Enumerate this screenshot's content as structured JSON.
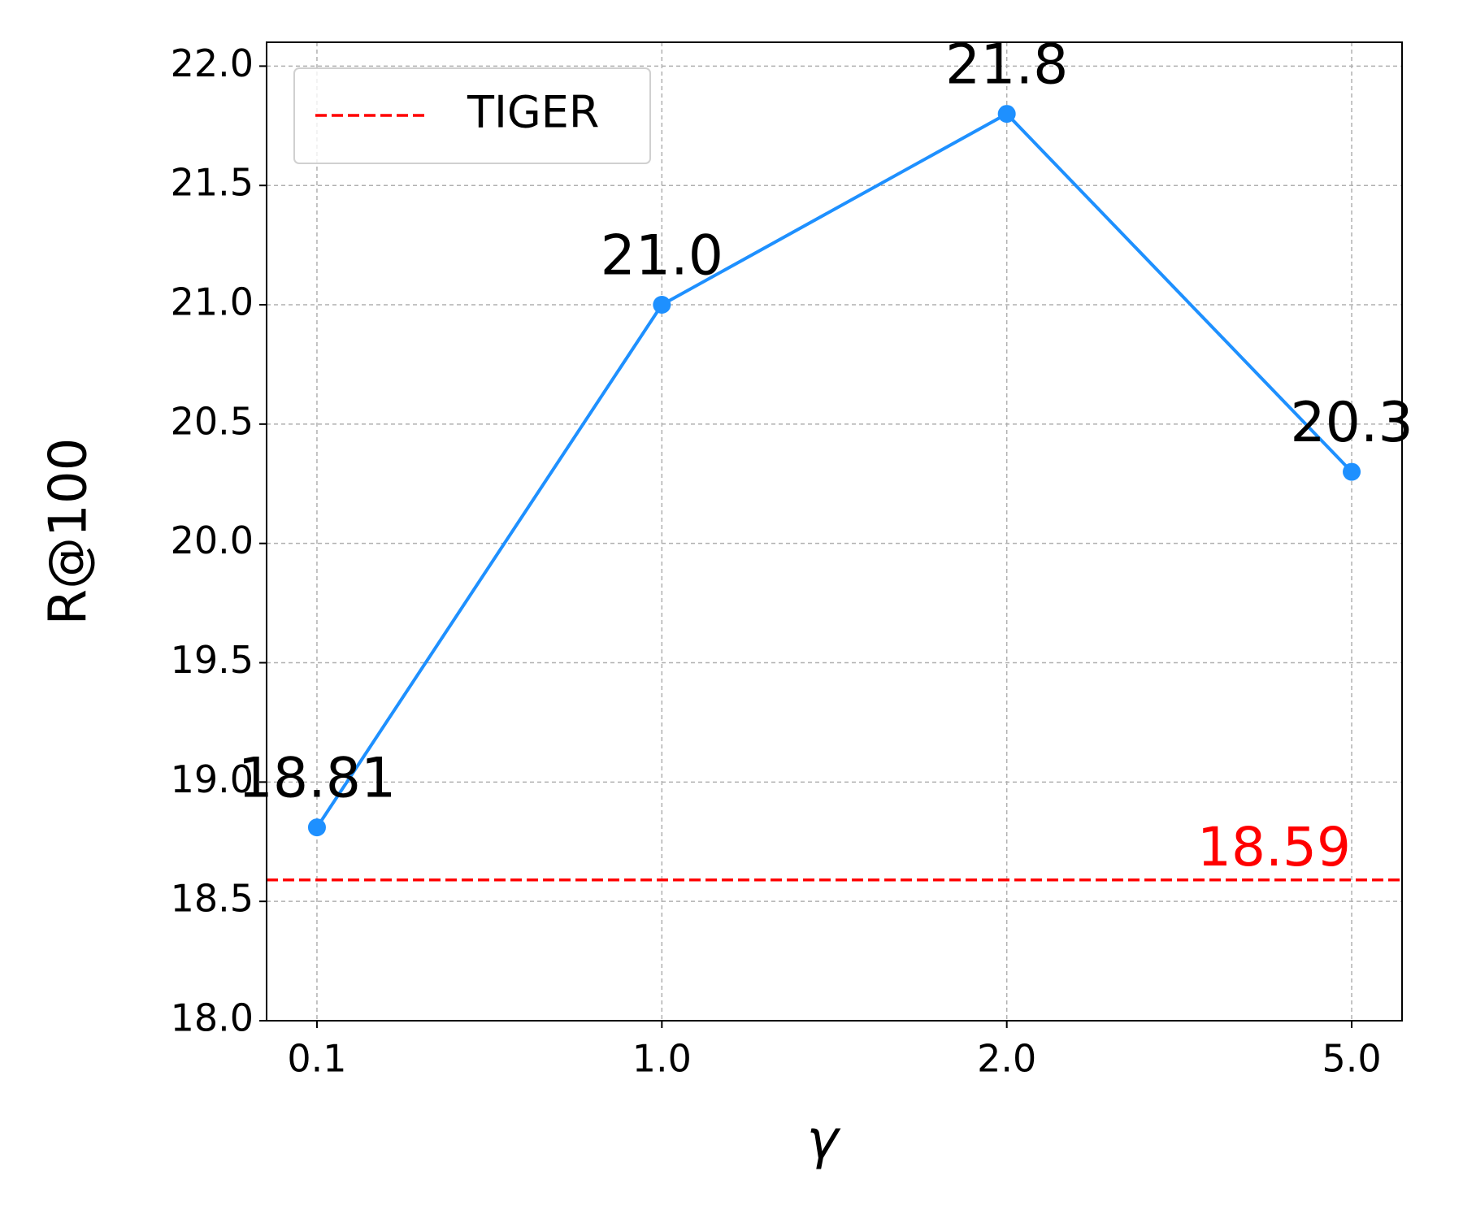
{
  "chart_data": {
    "type": "line",
    "x_label": "γ",
    "y_label": "R@100",
    "categories": [
      "0.1",
      "1.0",
      "2.0",
      "5.0"
    ],
    "series": [
      {
        "values": [
          18.81,
          21.0,
          21.8,
          20.3
        ],
        "value_labels": [
          "18.81",
          "21.0",
          "21.8",
          "20.3"
        ],
        "color": "#1e90ff"
      }
    ],
    "reference": {
      "name": "TIGER",
      "value": 18.59,
      "color": "#ff0000"
    },
    "ylim": [
      18.0,
      22.1
    ],
    "yticks": [
      {
        "value": 18.0,
        "label": "18.0"
      },
      {
        "value": 18.5,
        "label": "18.5"
      },
      {
        "value": 19.0,
        "label": "19.0"
      },
      {
        "value": 19.5,
        "label": "19.5"
      },
      {
        "value": 20.0,
        "label": "20.0"
      },
      {
        "value": 20.5,
        "label": "20.5"
      },
      {
        "value": 21.0,
        "label": "21.0"
      },
      {
        "value": 21.5,
        "label": "21.5"
      },
      {
        "value": 22.0,
        "label": "22.0"
      }
    ],
    "grid": true,
    "legend": "upper left"
  }
}
